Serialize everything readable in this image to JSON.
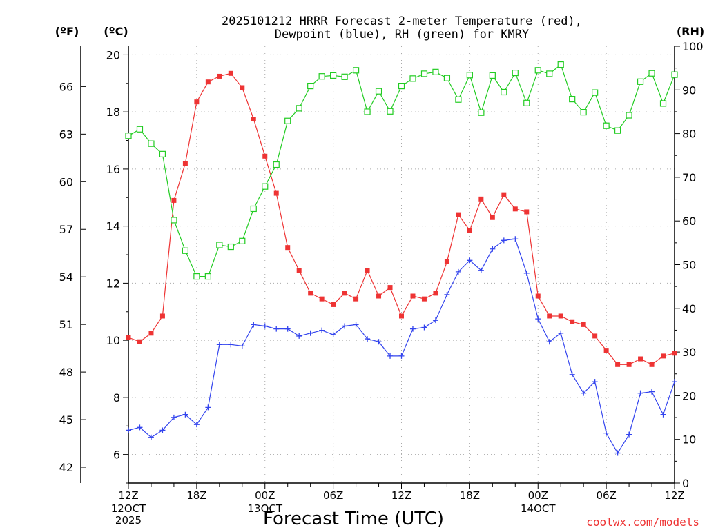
{
  "chart_data": {
    "type": "line",
    "title_line1": "2025101212 HRRR Forecast 2-meter Temperature (red),",
    "title_line2": "Dewpoint (blue), RH (green) for KMRY",
    "xlabel": "Forecast Time (UTC)",
    "left_unit_f": "(ºF)",
    "left_unit_c": "(ºC)",
    "right_unit": "(RH)",
    "credit": "coolwx.com/models",
    "colors": {
      "temperature": "#ee3333",
      "dewpoint": "#3344ee",
      "rh": "#22cc22"
    },
    "x_range": [
      0,
      48
    ],
    "x_ticks": [
      {
        "x": 0,
        "label": "12Z",
        "sub1": "12OCT",
        "sub2": "2025"
      },
      {
        "x": 6,
        "label": "18Z",
        "sub1": "",
        "sub2": ""
      },
      {
        "x": 12,
        "label": "00Z",
        "sub1": "13OCT",
        "sub2": ""
      },
      {
        "x": 18,
        "label": "06Z",
        "sub1": "",
        "sub2": ""
      },
      {
        "x": 24,
        "label": "12Z",
        "sub1": "",
        "sub2": ""
      },
      {
        "x": 30,
        "label": "18Z",
        "sub1": "",
        "sub2": ""
      },
      {
        "x": 36,
        "label": "00Z",
        "sub1": "14OCT",
        "sub2": ""
      },
      {
        "x": 42,
        "label": "06Z",
        "sub1": "",
        "sub2": ""
      },
      {
        "x": 48,
        "label": "12Z",
        "sub1": "",
        "sub2": ""
      }
    ],
    "y_celsius_range": [
      5,
      20.3
    ],
    "y_celsius_ticks": [
      6,
      8,
      10,
      12,
      14,
      16,
      18,
      20
    ],
    "y_fahrenheit_ticks": [
      42,
      45,
      48,
      51,
      54,
      57,
      60,
      63,
      66
    ],
    "y_rh_range": [
      0,
      100
    ],
    "y_rh_ticks": [
      0,
      10,
      20,
      30,
      40,
      50,
      60,
      70,
      80,
      90,
      100
    ],
    "series": [
      {
        "name": "Temperature",
        "axis": "celsius",
        "marker": "filled-square",
        "values": [
          10.1,
          9.95,
          10.25,
          10.85,
          14.9,
          16.2,
          18.35,
          19.05,
          19.25,
          19.35,
          18.85,
          17.75,
          16.45,
          15.15,
          13.25,
          12.45,
          11.65,
          11.45,
          11.25,
          11.65,
          11.45,
          12.45,
          11.55,
          11.85,
          10.85,
          11.55,
          11.45,
          11.65,
          12.75,
          14.4,
          13.85,
          14.95,
          14.3,
          15.1,
          14.6,
          14.5,
          11.55,
          10.85,
          10.85,
          10.65,
          10.55,
          10.15,
          9.65,
          9.15,
          9.15,
          9.35,
          9.15,
          9.45,
          9.55
        ]
      },
      {
        "name": "Dewpoint",
        "axis": "celsius",
        "marker": "plus",
        "values": [
          6.85,
          6.95,
          6.6,
          6.85,
          7.3,
          7.4,
          7.05,
          7.65,
          9.85,
          9.85,
          9.8,
          10.55,
          10.5,
          10.4,
          10.4,
          10.15,
          10.25,
          10.35,
          10.2,
          10.5,
          10.55,
          10.05,
          9.95,
          9.45,
          9.45,
          10.4,
          10.45,
          10.7,
          11.6,
          12.4,
          12.8,
          12.45,
          13.2,
          13.5,
          13.55,
          12.35,
          10.75,
          9.95,
          10.25,
          8.8,
          8.15,
          8.55,
          6.75,
          6.05,
          6.7,
          8.15,
          8.2,
          7.4,
          8.55
        ]
      },
      {
        "name": "RH",
        "axis": "rh",
        "marker": "open-square",
        "values": [
          79.5,
          81,
          77.7,
          75.3,
          60.2,
          53.2,
          47.3,
          47.3,
          54.5,
          54.1,
          55.4,
          62.8,
          67.9,
          72.9,
          82.9,
          85.8,
          90.9,
          93.1,
          93.3,
          93,
          94.5,
          85,
          89.7,
          85.1,
          90.9,
          92.6,
          93.7,
          94.1,
          92.7,
          87.8,
          93.4,
          84.8,
          93.3,
          89.5,
          93.9,
          87,
          94.5,
          93.7,
          95.8,
          87.9,
          84.9,
          89.4,
          81.8,
          80.7,
          84.2,
          91.9,
          93.8,
          86.9,
          93.5
        ]
      }
    ]
  }
}
